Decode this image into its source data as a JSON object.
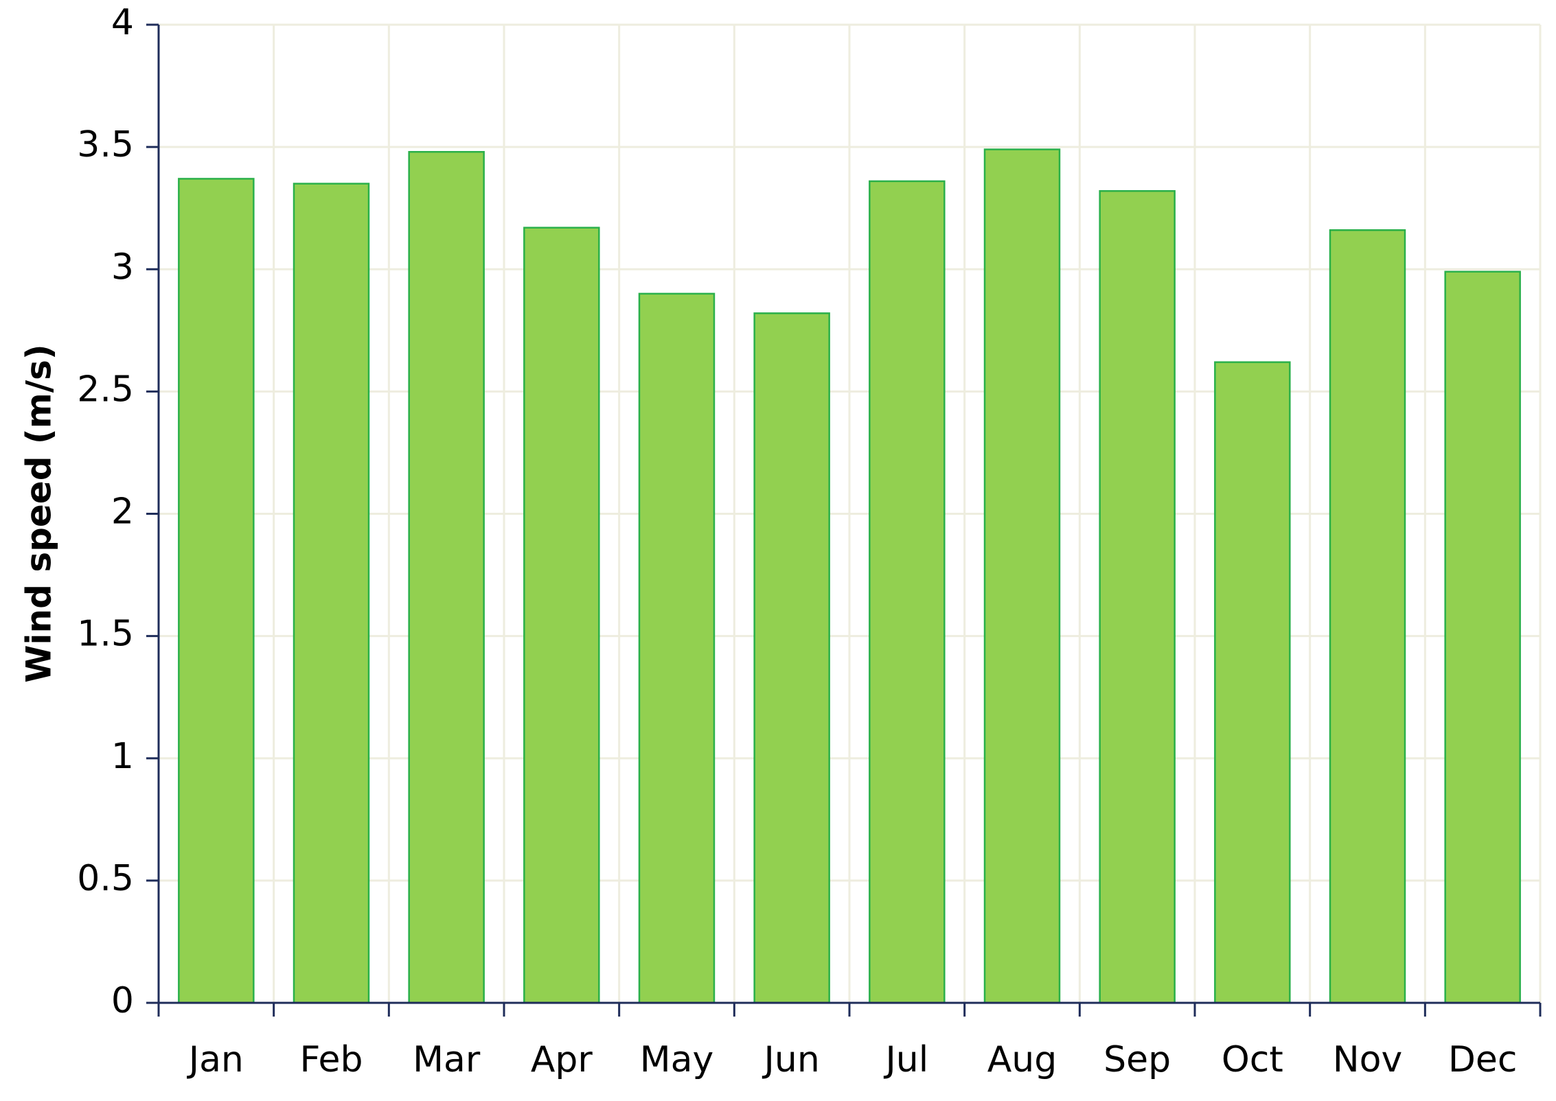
{
  "chart_data": {
    "type": "bar",
    "y_label": "Wind speed (m/s)",
    "categories": [
      "Jan",
      "Feb",
      "Mar",
      "Apr",
      "May",
      "Jun",
      "Jul",
      "Aug",
      "Sep",
      "Oct",
      "Nov",
      "Dec"
    ],
    "values": [
      3.37,
      3.35,
      3.48,
      3.17,
      2.9,
      2.82,
      3.36,
      3.49,
      3.32,
      2.62,
      3.16,
      2.99
    ],
    "color": "#92d050",
    "edge_color": "#2ab04a",
    "ylim": [
      0,
      4
    ],
    "yticks": [
      0,
      0.5,
      1,
      1.5,
      2,
      2.5,
      3,
      3.5,
      4
    ],
    "grid": true
  }
}
